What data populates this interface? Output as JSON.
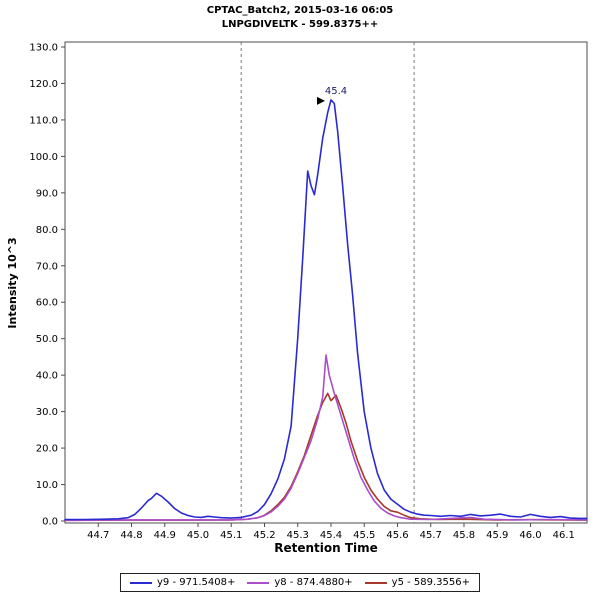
{
  "chart_data": {
    "type": "line",
    "title": "CPTAC_Batch2, 2015-03-16 06:05",
    "subtitle": "LNPGDIVELTK - 599.8375++",
    "xlabel": "Retention Time",
    "ylabel": "Intensity 10^3",
    "xlim": [
      44.6,
      46.17
    ],
    "ylim": [
      0,
      130
    ],
    "x_ticks": [
      44.7,
      44.8,
      44.9,
      45.0,
      45.1,
      45.2,
      45.3,
      45.4,
      45.5,
      45.6,
      45.7,
      45.8,
      45.9,
      46.0,
      46.1
    ],
    "y_ticks": [
      0,
      10,
      20,
      30,
      40,
      50,
      60,
      70,
      80,
      90,
      100,
      110,
      120,
      130
    ],
    "integration_boundaries": [
      45.13,
      45.65
    ],
    "annotation": {
      "text": "45.4",
      "x": 45.4,
      "y": 115.5
    },
    "series": [
      {
        "name": "y9 - 971.5408+",
        "color": "#2a2ad2",
        "points": [
          [
            44.6,
            0.4
          ],
          [
            44.66,
            0.4
          ],
          [
            44.72,
            0.5
          ],
          [
            44.76,
            0.6
          ],
          [
            44.79,
            0.9
          ],
          [
            44.81,
            1.8
          ],
          [
            44.83,
            3.6
          ],
          [
            44.85,
            5.6
          ],
          [
            44.86,
            6.2
          ],
          [
            44.875,
            7.6
          ],
          [
            44.89,
            6.8
          ],
          [
            44.91,
            5.2
          ],
          [
            44.93,
            3.4
          ],
          [
            44.95,
            2.2
          ],
          [
            44.97,
            1.5
          ],
          [
            44.99,
            1.1
          ],
          [
            45.01,
            1.0
          ],
          [
            45.03,
            1.3
          ],
          [
            45.05,
            1.1
          ],
          [
            45.07,
            0.9
          ],
          [
            45.1,
            0.8
          ],
          [
            45.13,
            1.0
          ],
          [
            45.16,
            1.6
          ],
          [
            45.18,
            2.6
          ],
          [
            45.2,
            4.5
          ],
          [
            45.22,
            7.5
          ],
          [
            45.24,
            11.5
          ],
          [
            45.26,
            17
          ],
          [
            45.28,
            26
          ],
          [
            45.3,
            50
          ],
          [
            45.315,
            72
          ],
          [
            45.33,
            96
          ],
          [
            45.34,
            92
          ],
          [
            45.35,
            89.5
          ],
          [
            45.36,
            95
          ],
          [
            45.375,
            105
          ],
          [
            45.39,
            112
          ],
          [
            45.4,
            115.5
          ],
          [
            45.41,
            114.5
          ],
          [
            45.42,
            107
          ],
          [
            45.435,
            92
          ],
          [
            45.45,
            76
          ],
          [
            45.465,
            62
          ],
          [
            45.48,
            46
          ],
          [
            45.5,
            30
          ],
          [
            45.52,
            20
          ],
          [
            45.54,
            13
          ],
          [
            45.56,
            8.5
          ],
          [
            45.58,
            6
          ],
          [
            45.6,
            4.6
          ],
          [
            45.62,
            3.2
          ],
          [
            45.64,
            2.4
          ],
          [
            45.66,
            1.9
          ],
          [
            45.68,
            1.6
          ],
          [
            45.7,
            1.5
          ],
          [
            45.73,
            1.3
          ],
          [
            45.76,
            1.5
          ],
          [
            45.79,
            1.3
          ],
          [
            45.82,
            1.8
          ],
          [
            45.85,
            1.4
          ],
          [
            45.88,
            1.6
          ],
          [
            45.91,
            1.9
          ],
          [
            45.94,
            1.3
          ],
          [
            45.97,
            1.1
          ],
          [
            46.0,
            1.8
          ],
          [
            46.03,
            1.3
          ],
          [
            46.06,
            1.0
          ],
          [
            46.09,
            1.2
          ],
          [
            46.12,
            0.8
          ],
          [
            46.15,
            0.7
          ],
          [
            46.17,
            0.7
          ]
        ]
      },
      {
        "name": "y8 - 874.4880+",
        "color": "#aa4ecb",
        "points": [
          [
            44.6,
            0.2
          ],
          [
            44.8,
            0.3
          ],
          [
            45.0,
            0.3
          ],
          [
            45.1,
            0.3
          ],
          [
            45.15,
            0.5
          ],
          [
            45.18,
            0.9
          ],
          [
            45.2,
            1.5
          ],
          [
            45.22,
            2.5
          ],
          [
            45.24,
            4
          ],
          [
            45.26,
            6
          ],
          [
            45.28,
            9
          ],
          [
            45.3,
            13
          ],
          [
            45.32,
            17.5
          ],
          [
            45.34,
            22
          ],
          [
            45.36,
            28
          ],
          [
            45.375,
            34
          ],
          [
            45.385,
            45.5
          ],
          [
            45.395,
            40
          ],
          [
            45.41,
            35
          ],
          [
            45.43,
            29
          ],
          [
            45.45,
            23
          ],
          [
            45.47,
            17
          ],
          [
            45.49,
            12
          ],
          [
            45.51,
            8.5
          ],
          [
            45.53,
            5.5
          ],
          [
            45.55,
            3.5
          ],
          [
            45.57,
            2.2
          ],
          [
            45.59,
            1.4
          ],
          [
            45.61,
            0.9
          ],
          [
            45.64,
            0.5
          ],
          [
            45.7,
            0.4
          ],
          [
            45.78,
            0.8
          ],
          [
            45.82,
            1.0
          ],
          [
            45.86,
            0.5
          ],
          [
            45.95,
            0.3
          ],
          [
            46.05,
            0.4
          ],
          [
            46.17,
            0.3
          ]
        ]
      },
      {
        "name": "y5 - 589.3556+",
        "color": "#a5392b",
        "points": [
          [
            44.6,
            0.2
          ],
          [
            44.8,
            0.25
          ],
          [
            45.0,
            0.25
          ],
          [
            45.1,
            0.3
          ],
          [
            45.15,
            0.5
          ],
          [
            45.18,
            0.9
          ],
          [
            45.2,
            1.6
          ],
          [
            45.22,
            2.8
          ],
          [
            45.24,
            4.5
          ],
          [
            45.26,
            6.5
          ],
          [
            45.28,
            9.5
          ],
          [
            45.3,
            13.5
          ],
          [
            45.32,
            18
          ],
          [
            45.34,
            23.5
          ],
          [
            45.36,
            29
          ],
          [
            45.375,
            32.5
          ],
          [
            45.39,
            35
          ],
          [
            45.4,
            33
          ],
          [
            45.415,
            34.5
          ],
          [
            45.43,
            31
          ],
          [
            45.445,
            27
          ],
          [
            45.46,
            22
          ],
          [
            45.48,
            16.5
          ],
          [
            45.5,
            12
          ],
          [
            45.52,
            8.5
          ],
          [
            45.54,
            6
          ],
          [
            45.56,
            4
          ],
          [
            45.58,
            2.8
          ],
          [
            45.6,
            2.4
          ],
          [
            45.62,
            1.6
          ],
          [
            45.64,
            0.9
          ],
          [
            45.67,
            0.6
          ],
          [
            45.72,
            0.4
          ],
          [
            45.8,
            0.5
          ],
          [
            45.9,
            0.3
          ],
          [
            46.0,
            0.35
          ],
          [
            46.1,
            0.3
          ],
          [
            46.17,
            0.25
          ]
        ]
      }
    ]
  }
}
